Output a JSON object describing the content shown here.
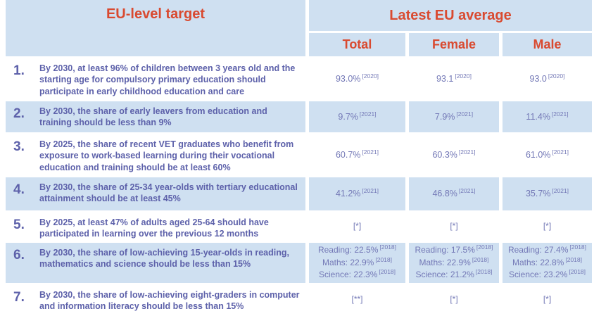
{
  "header": {
    "target_col": "EU-level target",
    "latest_group": "Latest EU average",
    "sub_cols": {
      "total": "Total",
      "female": "Female",
      "male": "Male"
    }
  },
  "colors": {
    "cell_blue": "#cfe0f1",
    "header_red": "#d94a30",
    "text_purple": "#5d61aa",
    "value_purple": "#7378b6"
  },
  "rows": [
    {
      "num": "1.",
      "target": "By 2030, at least 96% of children between 3 years old and the starting age for compulsory primary education should participate in early childhood education and care",
      "values": [
        {
          "v": "93.0%",
          "n": "[2020]"
        },
        {
          "v": "93.1",
          "n": "[2020]"
        },
        {
          "v": "93.0",
          "n": "[2020]"
        }
      ]
    },
    {
      "num": "2.",
      "target": "By 2030, the share of early leavers from education and training should be less than 9%",
      "values": [
        {
          "v": "9.7%",
          "n": "[2021]"
        },
        {
          "v": "7.9%",
          "n": "[2021]"
        },
        {
          "v": "11.4%",
          "n": "[2021]"
        }
      ]
    },
    {
      "num": "3.",
      "target": "By 2025, the share of recent VET graduates who benefit from exposure to work-based learning during their vocational education and training should be at least 60%",
      "values": [
        {
          "v": "60.7%",
          "n": "[2021]"
        },
        {
          "v": "60.3%",
          "n": "[2021]"
        },
        {
          "v": "61.0%",
          "n": "[2021]"
        }
      ]
    },
    {
      "num": "4.",
      "target": "By 2030, the share of 25-34 year-olds with tertiary educational attainment should be at least 45%",
      "values": [
        {
          "v": "41.2%",
          "n": "[2021]"
        },
        {
          "v": "46.8%",
          "n": "[2021]"
        },
        {
          "v": "35.7%",
          "n": "[2021]"
        }
      ]
    },
    {
      "num": "5.",
      "target": "By 2025, at least 47% of adults aged 25-64 should have participated in learning over the previous 12 months",
      "values": [
        {
          "v": "[*]"
        },
        {
          "v": "[*]"
        },
        {
          "v": "[*]"
        }
      ]
    },
    {
      "num": "6.",
      "target": "By 2030, the share of low-achieving 15-year-olds in reading, mathematics and science should be less than 15%",
      "values": [
        {
          "lines": [
            {
              "v": "Reading: 22.5%",
              "n": "[2018]"
            },
            {
              "v": "Maths: 22.9%",
              "n": "[2018]"
            },
            {
              "v": "Science: 22.3%",
              "n": "[2018]"
            }
          ]
        },
        {
          "lines": [
            {
              "v": "Reading: 17.5%",
              "n": "[2018]"
            },
            {
              "v": "Maths: 22.9%",
              "n": "[2018]"
            },
            {
              "v": "Science: 21.2%",
              "n": "[2018]"
            }
          ]
        },
        {
          "lines": [
            {
              "v": "Reading: 27.4%",
              "n": "[2018]"
            },
            {
              "v": "Maths: 22.8%",
              "n": "[2018]"
            },
            {
              "v": "Science: 23.2%",
              "n": "[2018]"
            }
          ]
        }
      ]
    },
    {
      "num": "7.",
      "target": "By 2030, the share of low-achieving eight-graders in computer and information literacy should be less than 15%",
      "values": [
        {
          "v": "[**]"
        },
        {
          "v": "[*]"
        },
        {
          "v": "[*]"
        }
      ]
    }
  ],
  "chart_data": {
    "type": "table",
    "title": "EU-level targets vs Latest EU average",
    "columns": [
      "EU-level target",
      "Total",
      "Female",
      "Male"
    ],
    "column_group": {
      "label": "Latest EU average",
      "spans": [
        "Total",
        "Female",
        "Male"
      ]
    },
    "rows": [
      [
        "1. By 2030, at least 96% of children between 3 years old and the starting age for compulsory primary education should participate in early childhood education and care",
        "93.0% [2020]",
        "93.1 [2020]",
        "93.0 [2020]"
      ],
      [
        "2. By 2030, the share of early leavers from education and training should be less than 9%",
        "9.7% [2021]",
        "7.9% [2021]",
        "11.4% [2021]"
      ],
      [
        "3. By 2025, the share of recent VET graduates who benefit from exposure to work-based learning during their vocational education and training should be at least 60%",
        "60.7% [2021]",
        "60.3% [2021]",
        "61.0% [2021]"
      ],
      [
        "4. By 2030, the share of 25-34 year-olds with tertiary educational attainment should be at least 45%",
        "41.2% [2021]",
        "46.8% [2021]",
        "35.7% [2021]"
      ],
      [
        "5. By 2025, at least 47% of adults aged 25-64 should have participated in learning over the previous 12 months",
        "[*]",
        "[*]",
        "[*]"
      ],
      [
        "6. By 2030, the share of low-achieving 15-year-olds in reading, mathematics and science should be less than 15%",
        "Reading: 22.5% [2018]; Maths: 22.9% [2018]; Science: 22.3% [2018]",
        "Reading: 17.5% [2018]; Maths: 22.9% [2018]; Science: 21.2% [2018]",
        "Reading: 27.4% [2018]; Maths: 22.8% [2018]; Science: 23.2% [2018]"
      ],
      [
        "7. By 2030, the share of low-achieving eight-graders in computer and information literacy should be less than 15%",
        "[**]",
        "[*]",
        "[*]"
      ]
    ]
  }
}
